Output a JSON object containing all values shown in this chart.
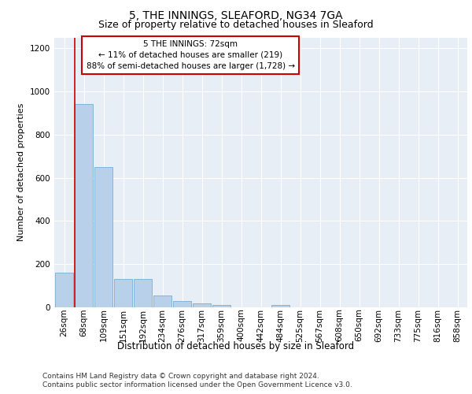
{
  "title1": "5, THE INNINGS, SLEAFORD, NG34 7GA",
  "title2": "Size of property relative to detached houses in Sleaford",
  "xlabel": "Distribution of detached houses by size in Sleaford",
  "ylabel": "Number of detached properties",
  "footnote1": "Contains HM Land Registry data © Crown copyright and database right 2024.",
  "footnote2": "Contains public sector information licensed under the Open Government Licence v3.0.",
  "annotation_line1": "5 THE INNINGS: 72sqm",
  "annotation_line2": "← 11% of detached houses are smaller (219)",
  "annotation_line3": "88% of semi-detached houses are larger (1,728) →",
  "bar_categories": [
    "26sqm",
    "68sqm",
    "109sqm",
    "151sqm",
    "192sqm",
    "234sqm",
    "276sqm",
    "317sqm",
    "359sqm",
    "400sqm",
    "442sqm",
    "484sqm",
    "525sqm",
    "567sqm",
    "608sqm",
    "650sqm",
    "692sqm",
    "733sqm",
    "775sqm",
    "816sqm",
    "858sqm"
  ],
  "bar_values": [
    160,
    940,
    650,
    130,
    130,
    55,
    30,
    18,
    12,
    0,
    0,
    12,
    0,
    0,
    0,
    0,
    0,
    0,
    0,
    0,
    0
  ],
  "bar_color": "#b8d0ea",
  "bar_edgecolor": "#7aadd4",
  "marker_color": "#cc0000",
  "ylim": [
    0,
    1250
  ],
  "yticks": [
    0,
    200,
    400,
    600,
    800,
    1000,
    1200
  ],
  "background_color": "#e8eef6",
  "annotation_box_facecolor": "#ffffff",
  "annotation_box_edgecolor": "#cc0000",
  "grid_color": "#ffffff",
  "title1_fontsize": 10,
  "title2_fontsize": 9,
  "xlabel_fontsize": 8.5,
  "ylabel_fontsize": 8,
  "tick_fontsize": 7.5,
  "footnote_fontsize": 6.5,
  "annotation_fontsize": 7.5
}
